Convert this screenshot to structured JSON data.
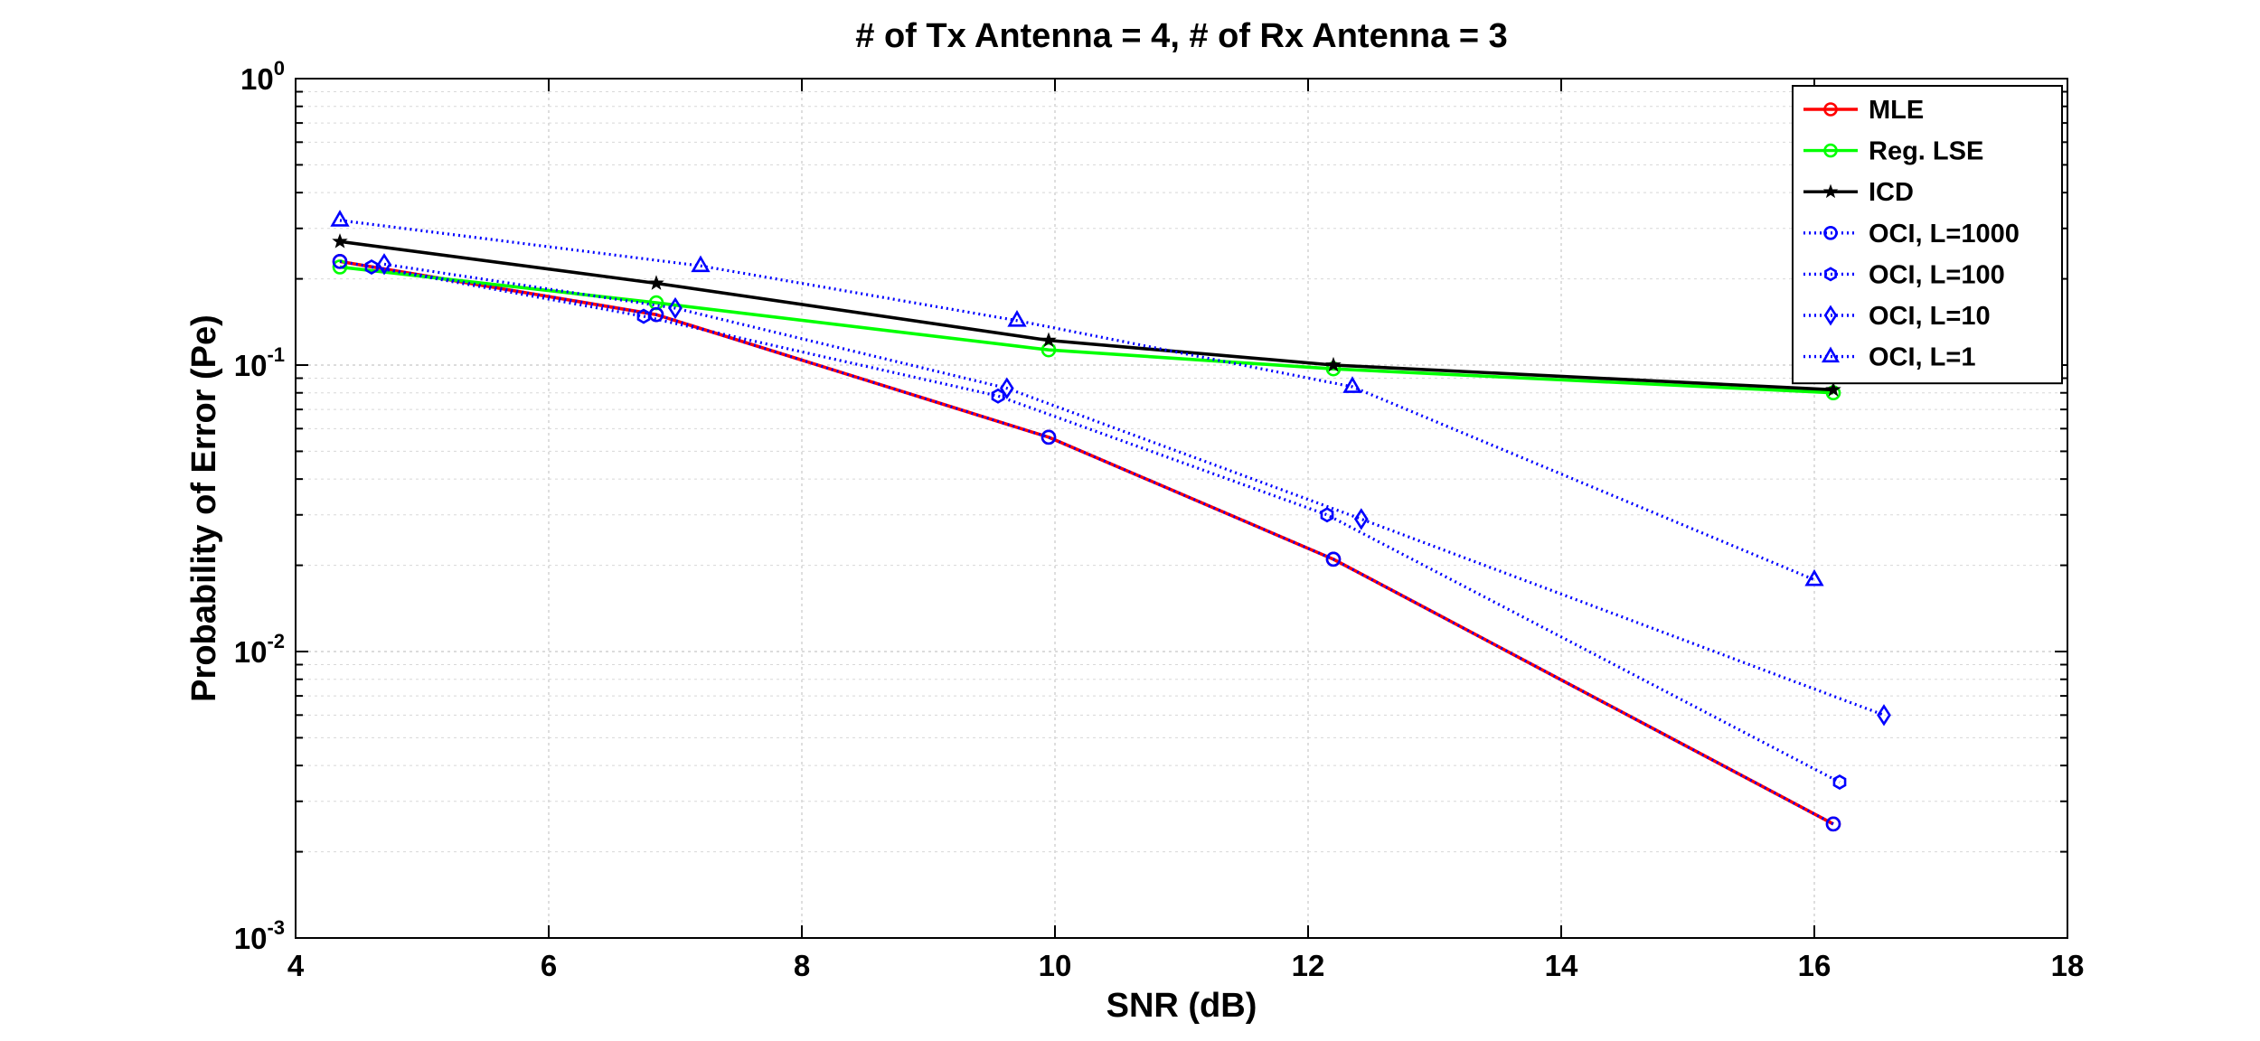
{
  "chart_data": {
    "type": "line",
    "title": "# of Tx Antenna = 4, # of Rx Antenna = 3",
    "xlabel": "SNR (dB)",
    "ylabel": "Probability of Error (Pe)",
    "xlim": [
      4,
      18
    ],
    "ylim": [
      0.001,
      1
    ],
    "yscale": "log",
    "grid": true,
    "legend_position": "top-right",
    "x_ticks": [
      "4",
      "6",
      "8",
      "10",
      "12",
      "14",
      "16",
      "18"
    ],
    "y_ticks": [
      {
        "base": "10",
        "exp": "0",
        "value": 1
      },
      {
        "base": "10",
        "exp": "-1",
        "value": 0.1
      },
      {
        "base": "10",
        "exp": "-2",
        "value": 0.01
      },
      {
        "base": "10",
        "exp": "-3",
        "value": 0.001
      }
    ],
    "series": [
      {
        "name": "MLE",
        "color": "#ff0000",
        "style": "solid",
        "marker": "circle",
        "x": [
          4.35,
          6.85,
          9.95,
          12.2,
          16.15
        ],
        "y": [
          0.23,
          0.15,
          0.056,
          0.021,
          0.0025
        ]
      },
      {
        "name": "Reg. LSE",
        "color": "#00ff00",
        "style": "solid",
        "marker": "circle",
        "x": [
          4.35,
          6.85,
          9.95,
          12.2,
          16.15
        ],
        "y": [
          0.22,
          0.165,
          0.113,
          0.097,
          0.08
        ]
      },
      {
        "name": "ICD",
        "color": "#000000",
        "style": "solid",
        "marker": "star",
        "x": [
          4.35,
          6.85,
          9.95,
          12.2,
          16.15
        ],
        "y": [
          0.27,
          0.193,
          0.122,
          0.1,
          0.082
        ]
      },
      {
        "name": "OCI, L=1000",
        "color": "#0000ff",
        "style": "dotted",
        "marker": "circle",
        "x": [
          4.35,
          6.85,
          9.95,
          12.2,
          16.15
        ],
        "y": [
          0.23,
          0.15,
          0.056,
          0.021,
          0.0025
        ]
      },
      {
        "name": "OCI, L=100",
        "color": "#0000ff",
        "style": "dotted",
        "marker": "hexagon",
        "x": [
          4.6,
          6.75,
          9.55,
          12.15,
          16.2
        ],
        "y": [
          0.22,
          0.148,
          0.078,
          0.03,
          0.0035
        ]
      },
      {
        "name": "OCI, L=10",
        "color": "#0000ff",
        "style": "dotted",
        "marker": "diamond",
        "x": [
          4.7,
          7.0,
          9.62,
          12.42,
          16.55
        ],
        "y": [
          0.225,
          0.158,
          0.083,
          0.029,
          0.006
        ]
      },
      {
        "name": "OCI, L=1",
        "color": "#0000ff",
        "style": "dotted",
        "marker": "triangle",
        "x": [
          4.35,
          7.2,
          9.7,
          12.35,
          16.0
        ],
        "y": [
          0.32,
          0.222,
          0.143,
          0.084,
          0.0178
        ]
      }
    ]
  }
}
